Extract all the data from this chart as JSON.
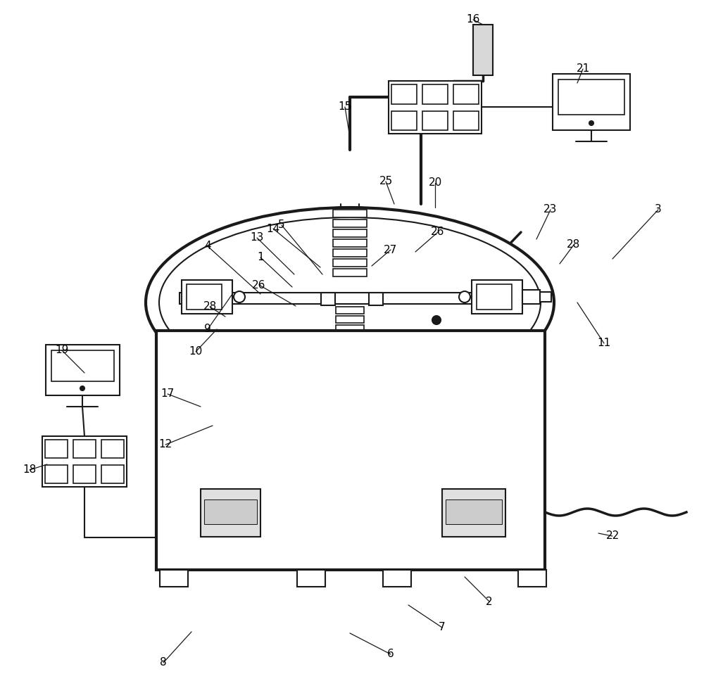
{
  "bg": "#ffffff",
  "lc": "#1a1a1a",
  "lw": 1.5,
  "tlw": 2.5,
  "fig_w": 10.0,
  "fig_h": 9.68,
  "dpi": 100
}
